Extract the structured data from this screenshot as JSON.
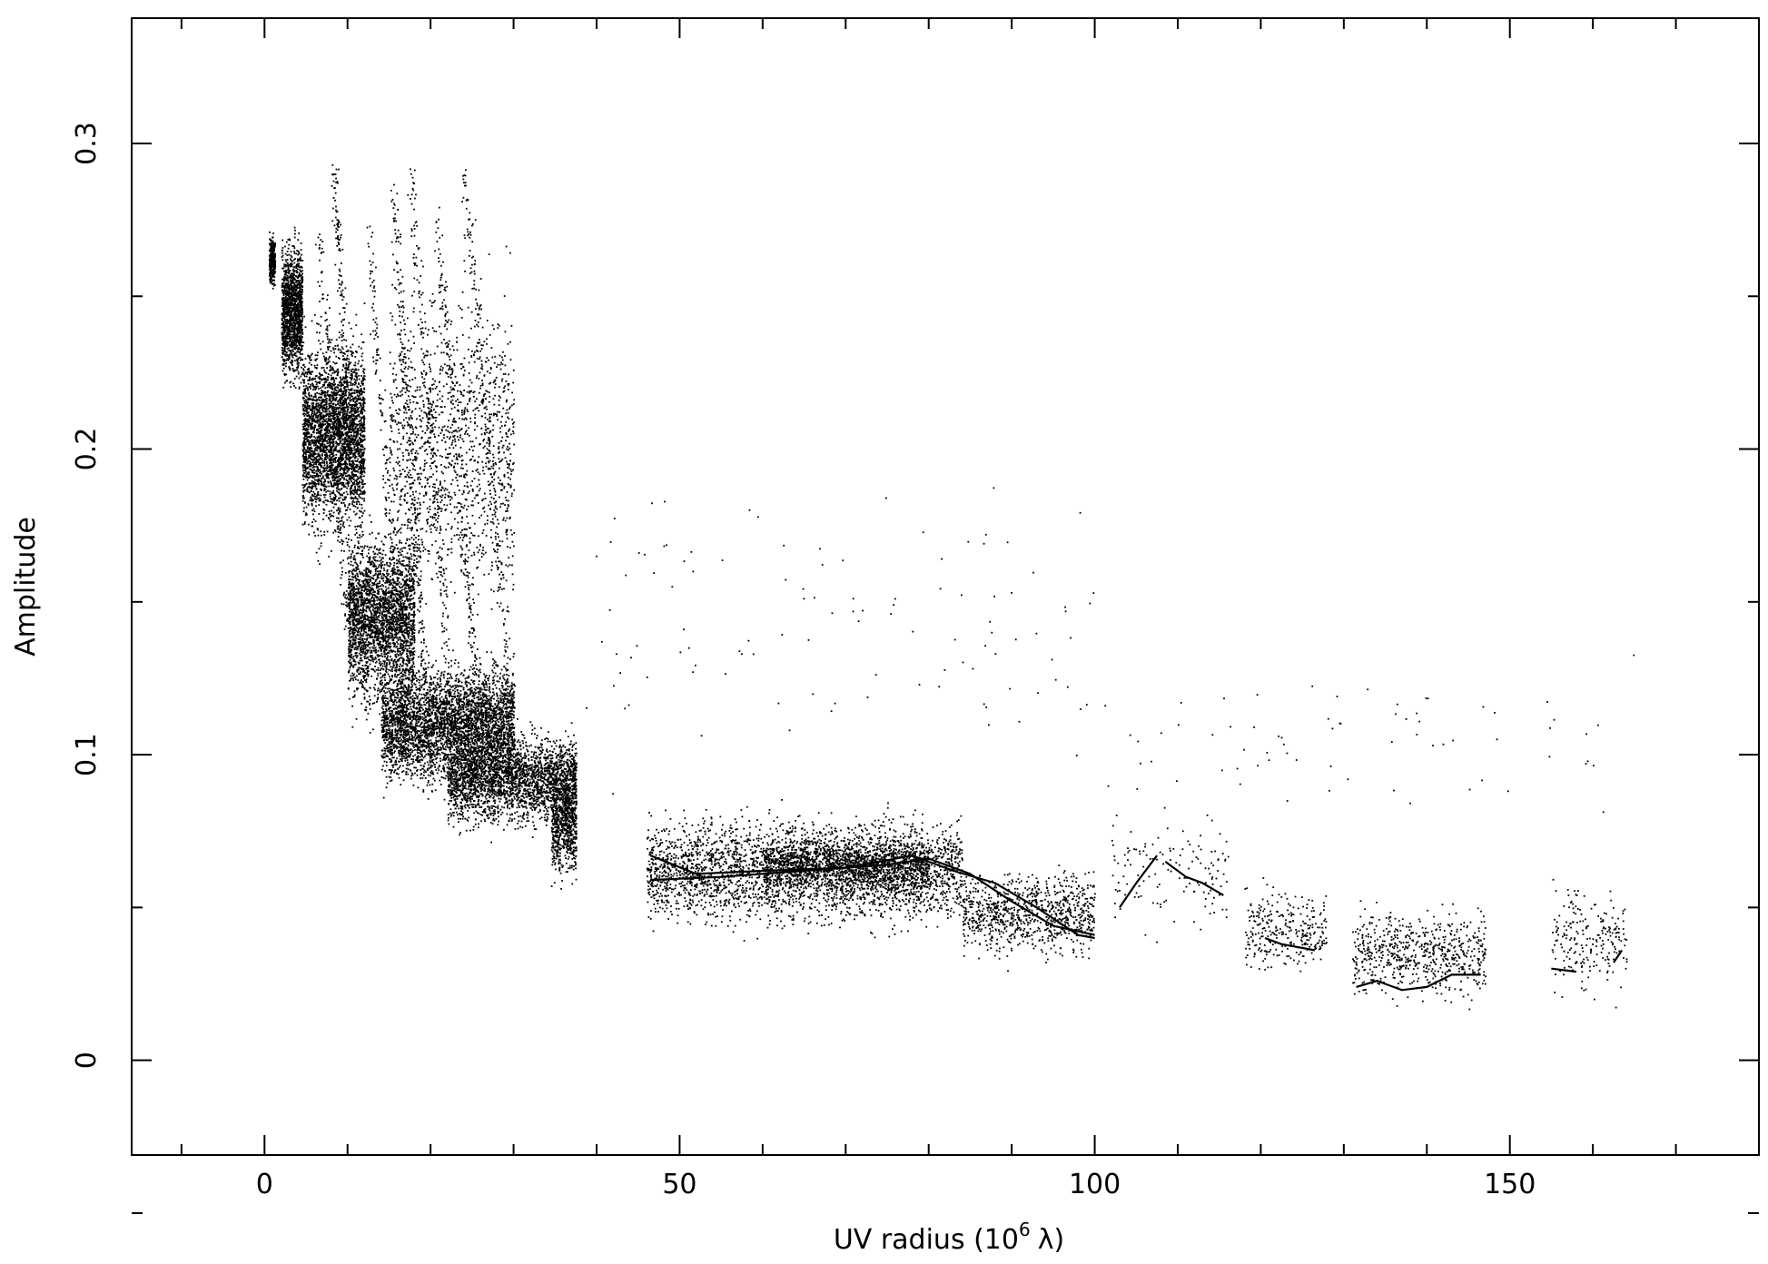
{
  "chart_data": {
    "type": "scatter",
    "title": "",
    "xlabel": "UV radius  (10",
    "xlabel_exponent": "6",
    "xlabel_unit": "λ)",
    "ylabel": "Amplitude",
    "xlim": [
      -16,
      180
    ],
    "ylim": [
      -0.031,
      0.341
    ],
    "x_ticks": [
      0,
      50,
      100,
      150
    ],
    "x_tick_labels": [
      "0",
      "50",
      "100",
      "150"
    ],
    "y_ticks": [
      0,
      0.1,
      0.2,
      0.3
    ],
    "y_tick_labels": [
      "0",
      "0.1",
      "0.2",
      "0.3"
    ],
    "grid": false,
    "legend": "none",
    "marker_color": "#000000",
    "clusters": [
      {
        "x_range": [
          0.5,
          1.2
        ],
        "y_center": 0.262,
        "y_spread": 0.008,
        "n": 260
      },
      {
        "x_range": [
          2.0,
          4.5
        ],
        "y_center": 0.245,
        "y_spread": 0.022,
        "n": 1400
      },
      {
        "x_range": [
          4.5,
          12.0
        ],
        "y_center": 0.205,
        "y_spread": 0.032,
        "n": 3200
      },
      {
        "x_range": [
          10.0,
          18.0
        ],
        "y_center": 0.145,
        "y_spread": 0.028,
        "n": 2600
      },
      {
        "x_range": [
          14.0,
          30.0
        ],
        "y_center": 0.11,
        "y_spread": 0.02,
        "n": 3800
      },
      {
        "x_range": [
          22.0,
          37.5
        ],
        "y_center": 0.092,
        "y_spread": 0.015,
        "n": 2600
      },
      {
        "x_range": [
          34.5,
          37.5
        ],
        "y_center": 0.078,
        "y_spread": 0.018,
        "n": 700
      },
      {
        "x_range": [
          15.0,
          30.0
        ],
        "y_center": 0.2,
        "y_spread": 0.055,
        "n": 1400
      },
      {
        "x_range": [
          46.0,
          84.0
        ],
        "y_center": 0.062,
        "y_spread": 0.018,
        "n": 3200
      },
      {
        "x_range": [
          60.0,
          80.0
        ],
        "y_center": 0.064,
        "y_spread": 0.01,
        "n": 1300
      },
      {
        "x_range": [
          84.0,
          100.0
        ],
        "y_center": 0.048,
        "y_spread": 0.014,
        "n": 900
      },
      {
        "x_range": [
          102.0,
          116.0
        ],
        "y_center": 0.062,
        "y_spread": 0.02,
        "n": 140
      },
      {
        "x_range": [
          118.0,
          128.0
        ],
        "y_center": 0.042,
        "y_spread": 0.014,
        "n": 300
      },
      {
        "x_range": [
          131.0,
          147.0
        ],
        "y_center": 0.035,
        "y_spread": 0.015,
        "n": 650
      },
      {
        "x_range": [
          155.0,
          164.0
        ],
        "y_center": 0.04,
        "y_spread": 0.018,
        "n": 220
      },
      {
        "x_range": [
          38.0,
          100.0
        ],
        "y_center": 0.14,
        "y_spread": 0.05,
        "n": 110
      },
      {
        "x_range": [
          100.0,
          165.0
        ],
        "y_center": 0.105,
        "y_spread": 0.025,
        "n": 70
      }
    ],
    "streaks": [
      {
        "x_top": 8.3,
        "y_top": 0.29,
        "x_bottom": 12.5,
        "y_bottom": 0.11,
        "n": 260
      },
      {
        "x_top": 15.5,
        "y_top": 0.285,
        "x_bottom": 20.0,
        "y_bottom": 0.09,
        "n": 260
      },
      {
        "x_top": 17.5,
        "y_top": 0.29,
        "x_bottom": 23.0,
        "y_bottom": 0.1,
        "n": 230
      },
      {
        "x_top": 20.5,
        "y_top": 0.28,
        "x_bottom": 26.5,
        "y_bottom": 0.09,
        "n": 230
      },
      {
        "x_top": 24.0,
        "y_top": 0.29,
        "x_bottom": 30.5,
        "y_bottom": 0.09,
        "n": 260
      },
      {
        "x_top": 12.5,
        "y_top": 0.27,
        "x_bottom": 17.0,
        "y_bottom": 0.1,
        "n": 200
      },
      {
        "x_top": 6.5,
        "y_top": 0.27,
        "x_bottom": 10.0,
        "y_bottom": 0.14,
        "n": 180
      }
    ],
    "trend_lines": [
      {
        "x": [
          46.5,
          52,
          60,
          70,
          78,
          83,
          88,
          93,
          98,
          100
        ],
        "y": [
          0.067,
          0.061,
          0.062,
          0.063,
          0.067,
          0.062,
          0.058,
          0.05,
          0.041,
          0.04
        ]
      },
      {
        "x": [
          46.5,
          55,
          65,
          75,
          80,
          85,
          90,
          95,
          100
        ],
        "y": [
          0.059,
          0.06,
          0.062,
          0.064,
          0.066,
          0.061,
          0.052,
          0.044,
          0.041
        ]
      },
      {
        "x": [
          103,
          105,
          107.5
        ],
        "y": [
          0.05,
          0.058,
          0.067
        ]
      },
      {
        "x": [
          108.5,
          111,
          113,
          115.5
        ],
        "y": [
          0.065,
          0.06,
          0.058,
          0.054
        ]
      },
      {
        "x": [
          120.5,
          122.5,
          124.5,
          126.5
        ],
        "y": [
          0.04,
          0.038,
          0.037,
          0.036
        ]
      },
      {
        "x": [
          131.5,
          134,
          137,
          140,
          143,
          146.5
        ],
        "y": [
          0.024,
          0.026,
          0.023,
          0.024,
          0.028,
          0.028
        ]
      },
      {
        "x": [
          155,
          158
        ],
        "y": [
          0.03,
          0.029
        ]
      },
      {
        "x": [
          162.5,
          163.5
        ],
        "y": [
          0.032,
          0.036
        ]
      }
    ]
  }
}
